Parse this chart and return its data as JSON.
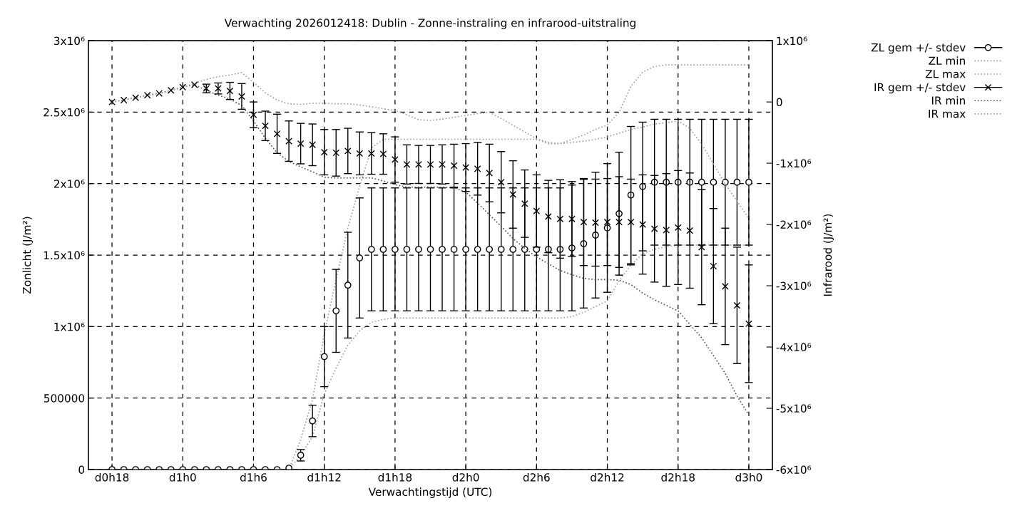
{
  "chart_data": {
    "type": "scatter",
    "title": "Verwachting 2026012418: Dublin - Zonne-instraling en infrarood-uitstraling",
    "xlabel": "Verwachtingstijd (UTC)",
    "ylabel": "Zonlicht (J/m²)",
    "y2label": "Infrarood (J/m²)",
    "categories": [
      "d0h18",
      null,
      null,
      null,
      null,
      null,
      "d1h0",
      null,
      null,
      null,
      null,
      null,
      "d1h6",
      null,
      null,
      null,
      null,
      null,
      "d1h12",
      null,
      null,
      null,
      null,
      null,
      "d1h18",
      null,
      null,
      null,
      null,
      null,
      "d2h0",
      null,
      null,
      null,
      null,
      null,
      "d2h6",
      null,
      null,
      null,
      null,
      null,
      "d2h12",
      null,
      null,
      null,
      null,
      null,
      "d2h18",
      null,
      null,
      null,
      null,
      null,
      "d3h0"
    ],
    "ylim": [
      0,
      3000000
    ],
    "yticks": [
      0,
      500000,
      {
        "value": 1000000,
        "label": "1x10⁶"
      },
      {
        "value": 1500000,
        "label": "1.5x10⁶"
      },
      {
        "value": 2000000,
        "label": "2x10⁶"
      },
      {
        "value": 2500000,
        "label": "2.5x10⁶"
      },
      {
        "value": 3000000,
        "label": "3x10⁶"
      }
    ],
    "y2lim": [
      -6000000,
      1000000
    ],
    "y2ticks": [
      {
        "value": -6000000,
        "label": "-6x10⁶"
      },
      {
        "value": -5000000,
        "label": "-5x10⁶"
      },
      {
        "value": -4000000,
        "label": "-4x10⁶"
      },
      {
        "value": -3000000,
        "label": "-3x10⁶"
      },
      {
        "value": -2000000,
        "label": "-2x10⁶"
      },
      {
        "value": -1000000,
        "label": "-1x10⁶"
      },
      0,
      {
        "value": 1000000,
        "label": "1x10⁶"
      }
    ],
    "grid": true,
    "legend": "top right",
    "series": [
      {
        "name": "ZL gem +/- stdev",
        "marker": "circle",
        "color": "#000000",
        "values": [
          0,
          0,
          0,
          0,
          0,
          0,
          0,
          0,
          0,
          0,
          0,
          0,
          0,
          0,
          0,
          10000,
          100000,
          340000,
          790000,
          1110000,
          1290000,
          1480000,
          1540000,
          1540000,
          1540000,
          1540000,
          1540000,
          1540000,
          1540000,
          1540000,
          1540000,
          1540000,
          1540000,
          1540000,
          1540000,
          1540000,
          1540000,
          1540000,
          1540000,
          1550000,
          1580000,
          1640000,
          1690000,
          1790000,
          1920000,
          1980000,
          2010000,
          2010000,
          2010000,
          2010000,
          2010000,
          2010000,
          2010000,
          2010000,
          2010000
        ],
        "errors": [
          null,
          null,
          null,
          null,
          null,
          null,
          null,
          null,
          null,
          null,
          null,
          null,
          null,
          null,
          null,
          null,
          40000,
          110000,
          210000,
          290000,
          370000,
          420000,
          430000,
          430000,
          430000,
          430000,
          430000,
          430000,
          430000,
          430000,
          430000,
          430000,
          430000,
          430000,
          430000,
          430000,
          430000,
          430000,
          430000,
          440000,
          450000,
          440000,
          450000,
          430000,
          480000,
          450000,
          440000,
          440000,
          440000,
          440000,
          440000,
          440000,
          440000,
          440000,
          440000
        ]
      },
      {
        "name": "ZL min",
        "type": "line",
        "line_style": "dotted",
        "color": "#a0a0a0",
        "values": [
          0,
          0,
          0,
          0,
          0,
          0,
          0,
          0,
          0,
          0,
          0,
          0,
          0,
          0,
          0,
          0,
          100000,
          230000,
          530000,
          710000,
          870000,
          970000,
          1030000,
          1050000,
          1060000,
          1060000,
          1060000,
          1060000,
          1060000,
          1060000,
          1060000,
          1060000,
          1060000,
          1060000,
          1060000,
          1060000,
          1060000,
          1060000,
          1060000,
          1070000,
          1100000,
          1140000,
          1180000,
          1320000,
          1430000,
          1510000,
          1540000,
          1560000,
          1570000,
          1570000,
          1570000,
          1570000,
          1570000,
          1570000,
          1570000
        ]
      },
      {
        "name": "ZL max",
        "type": "line",
        "line_style": "dotted",
        "color": "#a0a0a0",
        "values": [
          0,
          0,
          0,
          0,
          0,
          0,
          0,
          0,
          0,
          0,
          0,
          0,
          0,
          0,
          0,
          0,
          210000,
          490000,
          950000,
          1330000,
          1690000,
          1980000,
          2250000,
          2310000,
          2310000,
          2310000,
          2310000,
          2310000,
          2310000,
          2310000,
          2310000,
          2310000,
          2310000,
          2310000,
          2310000,
          2310000,
          2310000,
          2280000,
          2280000,
          2310000,
          2340000,
          2380000,
          2410000,
          2500000,
          2680000,
          2780000,
          2820000,
          2830000,
          2830000,
          2830000,
          2830000,
          2830000,
          2830000,
          2830000,
          2830000
        ]
      },
      {
        "name": "IR gem +/- stdev",
        "marker": "cross",
        "color": "#000000",
        "axis": "y2",
        "values": [
          0,
          30000,
          70000,
          110000,
          140000,
          190000,
          240000,
          280000,
          220000,
          220000,
          180000,
          90000,
          -210000,
          -390000,
          -520000,
          -640000,
          -680000,
          -700000,
          -820000,
          -830000,
          -800000,
          -840000,
          -840000,
          -850000,
          -940000,
          -1020000,
          -1020000,
          -1020000,
          -1020000,
          -1040000,
          -1070000,
          -1090000,
          -1160000,
          -1310000,
          -1510000,
          -1660000,
          -1780000,
          -1870000,
          -1910000,
          -1910000,
          -1960000,
          -1970000,
          -1960000,
          -1960000,
          -1960000,
          -2000000,
          -2070000,
          -2090000,
          -2050000,
          -2100000,
          -2370000,
          -2680000,
          -3010000,
          -3320000,
          -3620000
        ],
        "errors": [
          null,
          null,
          null,
          null,
          null,
          null,
          null,
          null,
          70000,
          90000,
          140000,
          210000,
          210000,
          240000,
          320000,
          330000,
          330000,
          340000,
          370000,
          380000,
          370000,
          350000,
          340000,
          330000,
          370000,
          320000,
          310000,
          310000,
          320000,
          350000,
          390000,
          430000,
          470000,
          500000,
          550000,
          550000,
          590000,
          590000,
          640000,
          610000,
          710000,
          710000,
          710000,
          740000,
          700000,
          810000,
          870000,
          920000,
          930000,
          940000,
          940000,
          940000,
          950000,
          950000,
          960000
        ]
      },
      {
        "name": "IR min",
        "type": "line",
        "line_style": "dotted",
        "color": "#555555",
        "axis": "y2",
        "values": [
          0,
          30000,
          70000,
          110000,
          140000,
          190000,
          240000,
          280000,
          190000,
          110000,
          50000,
          -60000,
          -310000,
          -590000,
          -830000,
          -970000,
          -1060000,
          -1140000,
          -1230000,
          -1240000,
          -1240000,
          -1240000,
          -1240000,
          -1290000,
          -1350000,
          -1390000,
          -1390000,
          -1390000,
          -1390000,
          -1400000,
          -1470000,
          -1650000,
          -1840000,
          -2030000,
          -2230000,
          -2390000,
          -2530000,
          -2640000,
          -2750000,
          -2820000,
          -2880000,
          -2900000,
          -2900000,
          -2910000,
          -2980000,
          -3120000,
          -3230000,
          -3320000,
          -3410000,
          -3630000,
          -3850000,
          -4140000,
          -4430000,
          -4800000,
          -5110000
        ]
      },
      {
        "name": "IR max",
        "type": "line",
        "line_style": "dotted",
        "color": "#a0a0a0",
        "axis": "y2",
        "values": [
          0,
          30000,
          70000,
          110000,
          140000,
          190000,
          240000,
          300000,
          370000,
          410000,
          440000,
          480000,
          320000,
          150000,
          30000,
          -30000,
          -40000,
          -20000,
          -20000,
          -30000,
          -30000,
          -50000,
          -80000,
          -110000,
          -140000,
          -210000,
          -290000,
          -300000,
          -280000,
          -250000,
          -220000,
          -190000,
          -170000,
          -270000,
          -380000,
          -490000,
          -600000,
          -660000,
          -680000,
          -660000,
          -640000,
          -610000,
          -570000,
          -510000,
          -450000,
          -410000,
          -360000,
          -340000,
          -310000,
          -430000,
          -690000,
          -1010000,
          -1340000,
          -1620000,
          -1900000
        ]
      }
    ]
  }
}
